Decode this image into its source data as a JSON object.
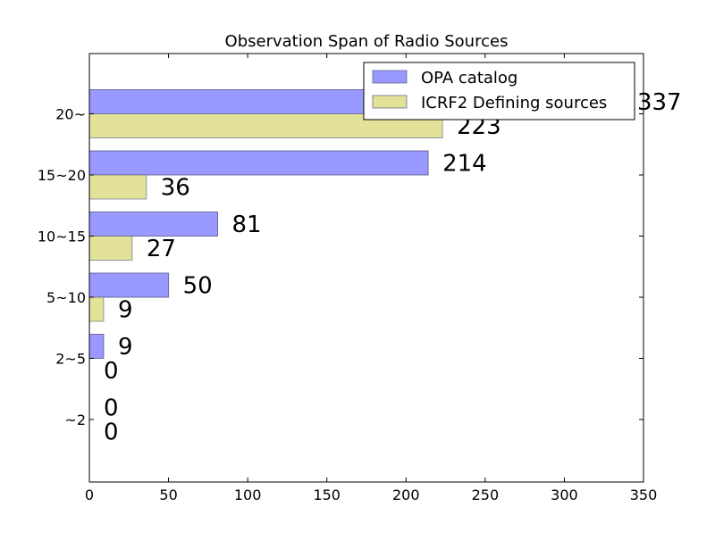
{
  "chart_data": {
    "type": "bar",
    "orientation": "horizontal",
    "title": "Observation Span of Radio Sources",
    "xlabel": "",
    "ylabel": "",
    "categories": [
      "~2",
      "2~5",
      "5~10",
      "10~15",
      "15~20",
      "20~"
    ],
    "series": [
      {
        "name": "OPA catalog",
        "values": [
          0,
          9,
          50,
          81,
          214,
          337
        ],
        "color": "#9999ff"
      },
      {
        "name": "ICRF2 Defining sources",
        "values": [
          0,
          0,
          9,
          27,
          36,
          223
        ],
        "color": "#e2e299"
      }
    ],
    "xlim": [
      0,
      350
    ],
    "xticks": [
      0,
      50,
      100,
      150,
      200,
      250,
      300,
      350
    ],
    "grid": false,
    "legend": "top-right"
  }
}
